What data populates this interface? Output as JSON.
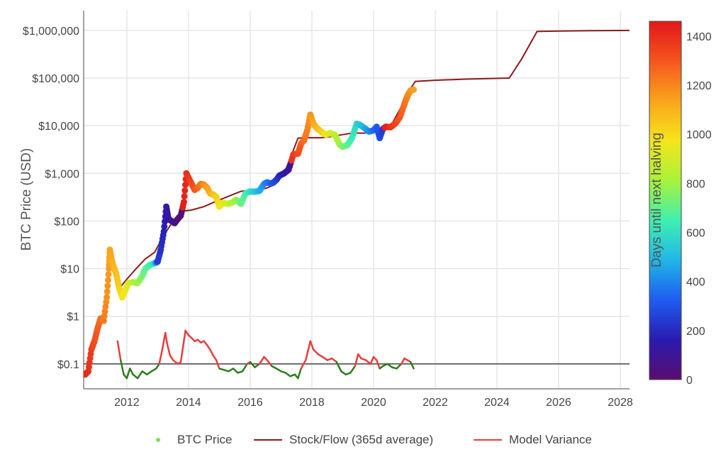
{
  "chart_data": {
    "type": "scatter",
    "y_scale": "log",
    "ylabel": "BTC Price (USD)",
    "xlabel": "",
    "xlim": [
      2010.6,
      2028.3
    ],
    "ylim": [
      0.03,
      2600000
    ],
    "x_ticks": [
      {
        "value": 2012,
        "label": "2012"
      },
      {
        "value": 2014,
        "label": "2014"
      },
      {
        "value": 2016,
        "label": "2016"
      },
      {
        "value": 2018,
        "label": "2018"
      },
      {
        "value": 2020,
        "label": "2020"
      },
      {
        "value": 2022,
        "label": "2022"
      },
      {
        "value": 2024,
        "label": "2024"
      },
      {
        "value": 2026,
        "label": "2026"
      },
      {
        "value": 2028,
        "label": "2028"
      }
    ],
    "y_ticks": [
      {
        "value": 0.1,
        "label": "$0.1"
      },
      {
        "value": 1,
        "label": "$1"
      },
      {
        "value": 10,
        "label": "$10"
      },
      {
        "value": 100,
        "label": "$100"
      },
      {
        "value": 1000,
        "label": "$1,000"
      },
      {
        "value": 10000,
        "label": "$10,000"
      },
      {
        "value": 100000,
        "label": "$100,000"
      },
      {
        "value": 1000000,
        "label": "$1,000,000"
      }
    ],
    "grid": true,
    "reference_line": {
      "y": 0.1,
      "color": "#444444"
    },
    "colorbar": {
      "title": "Days until next halving",
      "range": [
        0,
        1460
      ],
      "ticks": [
        {
          "value": 0,
          "label": "0"
        },
        {
          "value": 200,
          "label": "200"
        },
        {
          "value": 400,
          "label": "400"
        },
        {
          "value": 600,
          "label": "600"
        },
        {
          "value": 800,
          "label": "800"
        },
        {
          "value": 1000,
          "label": "1000"
        },
        {
          "value": 1200,
          "label": "1200"
        },
        {
          "value": 1400,
          "label": "1400"
        }
      ],
      "colorscale": [
        "#5a0d6e",
        "#2a1bb0",
        "#1f5cf0",
        "#21b6e8",
        "#3ef0b0",
        "#a8f23a",
        "#f5e51b",
        "#f9a41c",
        "#f5561d",
        "#e3161b"
      ]
    },
    "series": [
      {
        "name": "BTC Price",
        "kind": "colored_points",
        "color": "#7ee051",
        "points": [
          [
            2010.65,
            0.06,
            1430
          ],
          [
            2010.75,
            0.07,
            1400
          ],
          [
            2010.85,
            0.2,
            1360
          ],
          [
            2010.95,
            0.3,
            1320
          ],
          [
            2011.05,
            0.55,
            1290
          ],
          [
            2011.15,
            0.9,
            1250
          ],
          [
            2011.25,
            0.8,
            1220
          ],
          [
            2011.35,
            2.5,
            1180
          ],
          [
            2011.42,
            10,
            1150
          ],
          [
            2011.45,
            25,
            1140
          ],
          [
            2011.5,
            16,
            1120
          ],
          [
            2011.55,
            12,
            1100
          ],
          [
            2011.65,
            8,
            1070
          ],
          [
            2011.75,
            4,
            1030
          ],
          [
            2011.85,
            2.5,
            990
          ],
          [
            2011.95,
            3.5,
            950
          ],
          [
            2012.05,
            5,
            910
          ],
          [
            2012.2,
            5.2,
            860
          ],
          [
            2012.35,
            5,
            800
          ],
          [
            2012.5,
            7,
            740
          ],
          [
            2012.6,
            10,
            700
          ],
          [
            2012.75,
            12,
            650
          ],
          [
            2012.9,
            13,
            600
          ],
          [
            2013.0,
            14,
            250
          ],
          [
            2013.1,
            25,
            220
          ],
          [
            2013.2,
            60,
            180
          ],
          [
            2013.28,
            200,
            150
          ],
          [
            2013.35,
            110,
            120
          ],
          [
            2013.45,
            100,
            100
          ],
          [
            2013.55,
            90,
            70
          ],
          [
            2013.65,
            110,
            40
          ],
          [
            2013.75,
            130,
            20
          ],
          [
            2013.85,
            250,
            1440
          ],
          [
            2013.93,
            1000,
            1410
          ],
          [
            2014.0,
            800,
            1380
          ],
          [
            2014.1,
            600,
            1340
          ],
          [
            2014.2,
            450,
            1300
          ],
          [
            2014.3,
            500,
            1270
          ],
          [
            2014.4,
            600,
            1230
          ],
          [
            2014.5,
            580,
            1190
          ],
          [
            2014.6,
            500,
            1150
          ],
          [
            2014.7,
            380,
            1110
          ],
          [
            2014.8,
            360,
            1070
          ],
          [
            2014.9,
            320,
            1030
          ],
          [
            2015.0,
            200,
            990
          ],
          [
            2015.1,
            240,
            950
          ],
          [
            2015.25,
            230,
            900
          ],
          [
            2015.4,
            240,
            840
          ],
          [
            2015.55,
            280,
            780
          ],
          [
            2015.7,
            230,
            720
          ],
          [
            2015.85,
            380,
            660
          ],
          [
            2016.0,
            420,
            600
          ],
          [
            2016.15,
            410,
            540
          ],
          [
            2016.3,
            430,
            480
          ],
          [
            2016.45,
            600,
            420
          ],
          [
            2016.55,
            650,
            380
          ],
          [
            2016.65,
            610,
            350
          ],
          [
            2016.75,
            640,
            300
          ],
          [
            2016.85,
            730,
            260
          ],
          [
            2016.95,
            900,
            200
          ],
          [
            2017.1,
            1000,
            150
          ],
          [
            2017.25,
            1200,
            100
          ],
          [
            2017.4,
            2500,
            1380
          ],
          [
            2017.55,
            2600,
            1330
          ],
          [
            2017.65,
            4200,
            1290
          ],
          [
            2017.75,
            5000,
            1250
          ],
          [
            2017.85,
            8000,
            1210
          ],
          [
            2017.95,
            17000,
            1170
          ],
          [
            2018.05,
            11000,
            1130
          ],
          [
            2018.15,
            9000,
            1090
          ],
          [
            2018.3,
            7500,
            1040
          ],
          [
            2018.45,
            6500,
            980
          ],
          [
            2018.6,
            7000,
            920
          ],
          [
            2018.75,
            6400,
            860
          ],
          [
            2018.9,
            4000,
            800
          ],
          [
            2019.0,
            3600,
            760
          ],
          [
            2019.15,
            3900,
            700
          ],
          [
            2019.3,
            5500,
            640
          ],
          [
            2019.45,
            11000,
            580
          ],
          [
            2019.55,
            10500,
            540
          ],
          [
            2019.7,
            9000,
            480
          ],
          [
            2019.85,
            7500,
            420
          ],
          [
            2020.0,
            8000,
            360
          ],
          [
            2020.1,
            9500,
            320
          ],
          [
            2020.2,
            5500,
            280
          ],
          [
            2020.3,
            8500,
            240
          ],
          [
            2020.4,
            9500,
            1440
          ],
          [
            2020.55,
            9300,
            1400
          ],
          [
            2020.7,
            11000,
            1350
          ],
          [
            2020.85,
            15000,
            1300
          ],
          [
            2020.97,
            25000,
            1260
          ],
          [
            2021.05,
            35000,
            1230
          ],
          [
            2021.12,
            45000,
            1200
          ],
          [
            2021.2,
            55000,
            1170
          ],
          [
            2021.3,
            57000,
            1140
          ]
        ]
      },
      {
        "name": "Stock/Flow (365d average)",
        "kind": "line",
        "color": "#8b1a1a",
        "points": [
          [
            2011.7,
            3.5
          ],
          [
            2012.0,
            6
          ],
          [
            2012.3,
            10
          ],
          [
            2012.6,
            16
          ],
          [
            2012.9,
            22
          ],
          [
            2013.2,
            50
          ],
          [
            2013.5,
            100
          ],
          [
            2013.8,
            160
          ],
          [
            2014.1,
            170
          ],
          [
            2014.5,
            200
          ],
          [
            2014.9,
            260
          ],
          [
            2015.3,
            330
          ],
          [
            2015.7,
            420
          ],
          [
            2016.1,
            450
          ],
          [
            2016.5,
            480
          ],
          [
            2016.8,
            580
          ],
          [
            2017.1,
            1000
          ],
          [
            2017.35,
            2500
          ],
          [
            2017.55,
            5500
          ],
          [
            2017.9,
            5600
          ],
          [
            2018.3,
            5600
          ],
          [
            2018.7,
            6000
          ],
          [
            2019.0,
            6500
          ],
          [
            2019.3,
            7000
          ],
          [
            2019.7,
            7000
          ],
          [
            2020.0,
            7500
          ],
          [
            2020.3,
            7800
          ],
          [
            2020.6,
            11000
          ],
          [
            2020.9,
            25000
          ],
          [
            2021.2,
            60000
          ],
          [
            2021.35,
            85000
          ],
          [
            2022.0,
            90000
          ],
          [
            2023.0,
            95000
          ],
          [
            2024.4,
            100000
          ],
          [
            2024.8,
            250000
          ],
          [
            2025.3,
            950000
          ],
          [
            2026.0,
            970000
          ],
          [
            2027.0,
            985000
          ],
          [
            2028.3,
            1000000
          ]
        ]
      },
      {
        "name": "Model Variance",
        "kind": "variance_line",
        "color_above": "#e83d3d",
        "color_below": "#2e7d1f",
        "baseline": 0.1,
        "points": [
          [
            2011.7,
            0.3
          ],
          [
            2011.8,
            0.12
          ],
          [
            2011.9,
            0.06
          ],
          [
            2012.0,
            0.05
          ],
          [
            2012.1,
            0.08
          ],
          [
            2012.2,
            0.06
          ],
          [
            2012.35,
            0.05
          ],
          [
            2012.5,
            0.07
          ],
          [
            2012.65,
            0.06
          ],
          [
            2012.8,
            0.07
          ],
          [
            2012.95,
            0.08
          ],
          [
            2013.05,
            0.1
          ],
          [
            2013.15,
            0.2
          ],
          [
            2013.25,
            0.45
          ],
          [
            2013.3,
            0.28
          ],
          [
            2013.4,
            0.15
          ],
          [
            2013.5,
            0.12
          ],
          [
            2013.65,
            0.1
          ],
          [
            2013.75,
            0.11
          ],
          [
            2013.9,
            0.5
          ],
          [
            2014.0,
            0.4
          ],
          [
            2014.1,
            0.35
          ],
          [
            2014.2,
            0.3
          ],
          [
            2014.3,
            0.32
          ],
          [
            2014.4,
            0.28
          ],
          [
            2014.5,
            0.3
          ],
          [
            2014.6,
            0.25
          ],
          [
            2014.7,
            0.2
          ],
          [
            2014.8,
            0.15
          ],
          [
            2014.9,
            0.12
          ],
          [
            2015.0,
            0.08
          ],
          [
            2015.15,
            0.075
          ],
          [
            2015.3,
            0.07
          ],
          [
            2015.45,
            0.08
          ],
          [
            2015.6,
            0.065
          ],
          [
            2015.75,
            0.07
          ],
          [
            2015.9,
            0.1
          ],
          [
            2016.0,
            0.11
          ],
          [
            2016.15,
            0.085
          ],
          [
            2016.3,
            0.1
          ],
          [
            2016.45,
            0.14
          ],
          [
            2016.55,
            0.12
          ],
          [
            2016.7,
            0.09
          ],
          [
            2016.85,
            0.08
          ],
          [
            2017.0,
            0.07
          ],
          [
            2017.15,
            0.065
          ],
          [
            2017.3,
            0.055
          ],
          [
            2017.45,
            0.06
          ],
          [
            2017.55,
            0.05
          ],
          [
            2017.65,
            0.08
          ],
          [
            2017.8,
            0.12
          ],
          [
            2017.95,
            0.3
          ],
          [
            2018.05,
            0.2
          ],
          [
            2018.2,
            0.16
          ],
          [
            2018.35,
            0.14
          ],
          [
            2018.5,
            0.12
          ],
          [
            2018.65,
            0.13
          ],
          [
            2018.8,
            0.11
          ],
          [
            2018.95,
            0.07
          ],
          [
            2019.1,
            0.06
          ],
          [
            2019.25,
            0.065
          ],
          [
            2019.4,
            0.09
          ],
          [
            2019.5,
            0.16
          ],
          [
            2019.6,
            0.13
          ],
          [
            2019.75,
            0.12
          ],
          [
            2019.9,
            0.1
          ],
          [
            2020.0,
            0.14
          ],
          [
            2020.1,
            0.12
          ],
          [
            2020.2,
            0.08
          ],
          [
            2020.3,
            0.09
          ],
          [
            2020.45,
            0.1
          ],
          [
            2020.6,
            0.085
          ],
          [
            2020.75,
            0.08
          ],
          [
            2020.9,
            0.1
          ],
          [
            2021.0,
            0.13
          ],
          [
            2021.1,
            0.12
          ],
          [
            2021.2,
            0.11
          ],
          [
            2021.3,
            0.08
          ]
        ]
      }
    ],
    "legend": {
      "placement": "bottom",
      "items": [
        {
          "label": "BTC Price",
          "marker": "dot",
          "color": "#7ee051"
        },
        {
          "label": "Stock/Flow (365d average)",
          "marker": "line",
          "color": "#8b1a1a"
        },
        {
          "label": "Model Variance",
          "marker": "line",
          "color": "#e83d3d"
        }
      ]
    }
  }
}
